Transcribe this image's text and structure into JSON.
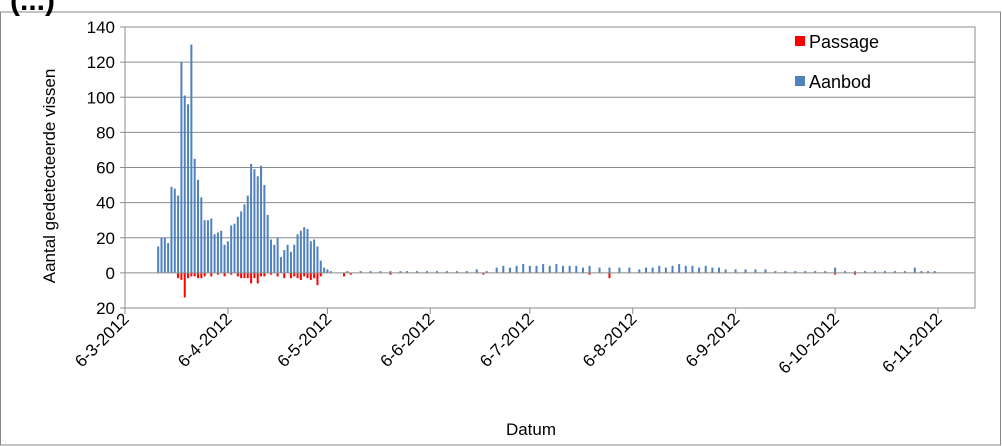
{
  "header_fragment": "(...)",
  "chart_data": {
    "type": "bar",
    "xlabel": "Datum",
    "ylabel": "Aantal gedetecteerde vissen",
    "y_tick_labels": [
      "20",
      "0",
      "20",
      "40",
      "60",
      "80",
      "100",
      "120",
      "140"
    ],
    "y_ticks": [
      -20,
      0,
      20,
      40,
      60,
      80,
      100,
      120,
      140
    ],
    "ylim": [
      -20,
      140
    ],
    "x_tick_labels": [
      "6-3-2012",
      "6-4-2012",
      "6-5-2012",
      "6-6-2012",
      "6-7-2012",
      "6-8-2012",
      "6-9-2012",
      "6-10-2012",
      "6-11-2012"
    ],
    "x_ticks": [
      "2012-03-06",
      "2012-04-06",
      "2012-05-06",
      "2012-06-06",
      "2012-07-06",
      "2012-08-06",
      "2012-09-06",
      "2012-10-06",
      "2012-11-06"
    ],
    "xlim": [
      "2012-03-06",
      "2012-11-06"
    ],
    "grid": "horizontal",
    "legend_position": "top-right",
    "series": [
      {
        "name": "Aanbod",
        "color": "#4F81BD",
        "points": [
          [
            "2012-03-16",
            15
          ],
          [
            "2012-03-17",
            20
          ],
          [
            "2012-03-18",
            20
          ],
          [
            "2012-03-19",
            17
          ],
          [
            "2012-03-20",
            49
          ],
          [
            "2012-03-21",
            48
          ],
          [
            "2012-03-22",
            44
          ],
          [
            "2012-03-23",
            120
          ],
          [
            "2012-03-24",
            101
          ],
          [
            "2012-03-25",
            96
          ],
          [
            "2012-03-26",
            130
          ],
          [
            "2012-03-27",
            65
          ],
          [
            "2012-03-28",
            53
          ],
          [
            "2012-03-29",
            43
          ],
          [
            "2012-03-30",
            30
          ],
          [
            "2012-03-31",
            30
          ],
          [
            "2012-04-01",
            31
          ],
          [
            "2012-04-02",
            22
          ],
          [
            "2012-04-03",
            23
          ],
          [
            "2012-04-04",
            24
          ],
          [
            "2012-04-05",
            16
          ],
          [
            "2012-04-06",
            18
          ],
          [
            "2012-04-07",
            27
          ],
          [
            "2012-04-08",
            28
          ],
          [
            "2012-04-09",
            32
          ],
          [
            "2012-04-10",
            35
          ],
          [
            "2012-04-11",
            39
          ],
          [
            "2012-04-12",
            44
          ],
          [
            "2012-04-13",
            62
          ],
          [
            "2012-04-14",
            59
          ],
          [
            "2012-04-15",
            55
          ],
          [
            "2012-04-16",
            61
          ],
          [
            "2012-04-17",
            50
          ],
          [
            "2012-04-18",
            33
          ],
          [
            "2012-04-19",
            19
          ],
          [
            "2012-04-20",
            16
          ],
          [
            "2012-04-21",
            20
          ],
          [
            "2012-04-22",
            9
          ],
          [
            "2012-04-23",
            13
          ],
          [
            "2012-04-24",
            16
          ],
          [
            "2012-04-25",
            12
          ],
          [
            "2012-04-26",
            16
          ],
          [
            "2012-04-27",
            22
          ],
          [
            "2012-04-28",
            24
          ],
          [
            "2012-04-29",
            26
          ],
          [
            "2012-04-30",
            25
          ],
          [
            "2012-05-01",
            18
          ],
          [
            "2012-05-02",
            19
          ],
          [
            "2012-05-03",
            15
          ],
          [
            "2012-05-04",
            7
          ],
          [
            "2012-05-05",
            3
          ],
          [
            "2012-05-06",
            2
          ],
          [
            "2012-05-07",
            1
          ],
          [
            "2012-05-12",
            1
          ],
          [
            "2012-05-16",
            1
          ],
          [
            "2012-05-19",
            1
          ],
          [
            "2012-05-22",
            1
          ],
          [
            "2012-05-25",
            1
          ],
          [
            "2012-05-28",
            1
          ],
          [
            "2012-05-30",
            1
          ],
          [
            "2012-06-02",
            1
          ],
          [
            "2012-06-05",
            1
          ],
          [
            "2012-06-08",
            1
          ],
          [
            "2012-06-11",
            1
          ],
          [
            "2012-06-14",
            1
          ],
          [
            "2012-06-17",
            1
          ],
          [
            "2012-06-20",
            2
          ],
          [
            "2012-06-23",
            1
          ],
          [
            "2012-06-26",
            3
          ],
          [
            "2012-06-28",
            4
          ],
          [
            "2012-06-30",
            3
          ],
          [
            "2012-07-02",
            4
          ],
          [
            "2012-07-04",
            5
          ],
          [
            "2012-07-06",
            4
          ],
          [
            "2012-07-08",
            4
          ],
          [
            "2012-07-10",
            5
          ],
          [
            "2012-07-12",
            4
          ],
          [
            "2012-07-14",
            5
          ],
          [
            "2012-07-16",
            4
          ],
          [
            "2012-07-18",
            4
          ],
          [
            "2012-07-20",
            4
          ],
          [
            "2012-07-22",
            3
          ],
          [
            "2012-07-24",
            4
          ],
          [
            "2012-07-27",
            3
          ],
          [
            "2012-07-30",
            3
          ],
          [
            "2012-08-02",
            3
          ],
          [
            "2012-08-05",
            3
          ],
          [
            "2012-08-08",
            2
          ],
          [
            "2012-08-10",
            3
          ],
          [
            "2012-08-12",
            3
          ],
          [
            "2012-08-14",
            4
          ],
          [
            "2012-08-16",
            3
          ],
          [
            "2012-08-18",
            4
          ],
          [
            "2012-08-20",
            5
          ],
          [
            "2012-08-22",
            4
          ],
          [
            "2012-08-24",
            4
          ],
          [
            "2012-08-26",
            3
          ],
          [
            "2012-08-28",
            4
          ],
          [
            "2012-08-30",
            3
          ],
          [
            "2012-09-01",
            3
          ],
          [
            "2012-09-03",
            2
          ],
          [
            "2012-09-06",
            2
          ],
          [
            "2012-09-09",
            2
          ],
          [
            "2012-09-12",
            2
          ],
          [
            "2012-09-15",
            2
          ],
          [
            "2012-09-18",
            1
          ],
          [
            "2012-09-21",
            1
          ],
          [
            "2012-09-24",
            1
          ],
          [
            "2012-09-27",
            1
          ],
          [
            "2012-09-30",
            1
          ],
          [
            "2012-10-03",
            1
          ],
          [
            "2012-10-06",
            3
          ],
          [
            "2012-10-09",
            1
          ],
          [
            "2012-10-12",
            1
          ],
          [
            "2012-10-15",
            1
          ],
          [
            "2012-10-18",
            1
          ],
          [
            "2012-10-21",
            1
          ],
          [
            "2012-10-24",
            1
          ],
          [
            "2012-10-27",
            1
          ],
          [
            "2012-10-30",
            3
          ],
          [
            "2012-11-01",
            1
          ],
          [
            "2012-11-03",
            1
          ],
          [
            "2012-11-05",
            1
          ]
        ]
      },
      {
        "name": "Passage",
        "color": "#FF0000",
        "points": [
          [
            "2012-03-22",
            -3
          ],
          [
            "2012-03-23",
            -4
          ],
          [
            "2012-03-24",
            -14
          ],
          [
            "2012-03-25",
            -3
          ],
          [
            "2012-03-26",
            -2
          ],
          [
            "2012-03-27",
            -2
          ],
          [
            "2012-03-28",
            -3
          ],
          [
            "2012-03-29",
            -3
          ],
          [
            "2012-03-30",
            -2
          ],
          [
            "2012-04-01",
            -2
          ],
          [
            "2012-04-03",
            -1
          ],
          [
            "2012-04-05",
            -2
          ],
          [
            "2012-04-07",
            -1
          ],
          [
            "2012-04-09",
            -2
          ],
          [
            "2012-04-10",
            -3
          ],
          [
            "2012-04-11",
            -3
          ],
          [
            "2012-04-12",
            -3
          ],
          [
            "2012-04-13",
            -6
          ],
          [
            "2012-04-14",
            -3
          ],
          [
            "2012-04-15",
            -6
          ],
          [
            "2012-04-16",
            -2
          ],
          [
            "2012-04-17",
            -2
          ],
          [
            "2012-04-19",
            -1
          ],
          [
            "2012-04-21",
            -2
          ],
          [
            "2012-04-23",
            -3
          ],
          [
            "2012-04-25",
            -3
          ],
          [
            "2012-04-26",
            -2
          ],
          [
            "2012-04-27",
            -3
          ],
          [
            "2012-04-28",
            -4
          ],
          [
            "2012-04-29",
            -2
          ],
          [
            "2012-04-30",
            -3
          ],
          [
            "2012-05-01",
            -4
          ],
          [
            "2012-05-02",
            -3
          ],
          [
            "2012-05-03",
            -7
          ],
          [
            "2012-05-04",
            -2
          ],
          [
            "2012-05-11",
            -2
          ],
          [
            "2012-05-13",
            -1
          ],
          [
            "2012-05-25",
            -1
          ],
          [
            "2012-06-22",
            -1
          ],
          [
            "2012-07-24",
            -1
          ],
          [
            "2012-07-30",
            -3
          ],
          [
            "2012-10-06",
            -1
          ],
          [
            "2012-10-12",
            -1
          ]
        ]
      }
    ]
  }
}
